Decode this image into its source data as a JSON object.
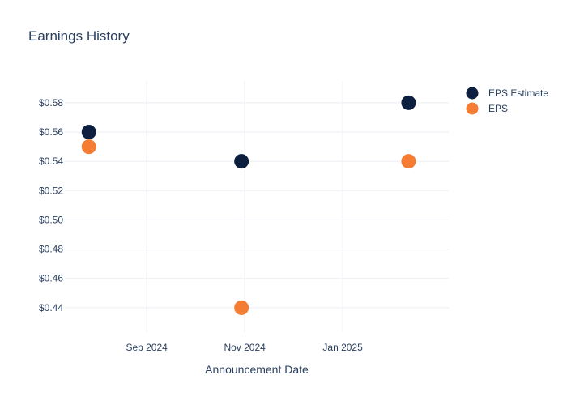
{
  "chart_data": {
    "type": "scatter",
    "title": "Earnings History",
    "xlabel": "Announcement Date",
    "ylabel": "",
    "x_ticks": [
      {
        "date": "2024-09-01",
        "label": "Sep 2024"
      },
      {
        "date": "2024-11-01",
        "label": "Nov 2024"
      },
      {
        "date": "2025-01-01",
        "label": "Jan 2025"
      }
    ],
    "y_ticks": [
      "$0.44",
      "$0.46",
      "$0.48",
      "$0.50",
      "$0.52",
      "$0.54",
      "$0.56",
      "$0.58"
    ],
    "y_tick_values": [
      0.44,
      0.46,
      0.48,
      0.5,
      0.52,
      0.54,
      0.56,
      0.58
    ],
    "xlim": [
      "2024-07-12",
      "2025-03-08"
    ],
    "ylim": [
      0.4233,
      0.5949
    ],
    "grid": true,
    "legend_position": "top-right",
    "series": [
      {
        "name": "EPS Estimate",
        "color": "#0d1f3f",
        "points": [
          {
            "x": "2024-07-27",
            "y": 0.56
          },
          {
            "x": "2024-10-30",
            "y": 0.54
          },
          {
            "x": "2025-02-11",
            "y": 0.58
          }
        ]
      },
      {
        "name": "EPS",
        "color": "#f47c33",
        "points": [
          {
            "x": "2024-07-27",
            "y": 0.55
          },
          {
            "x": "2024-10-30",
            "y": 0.44
          },
          {
            "x": "2025-02-11",
            "y": 0.54
          }
        ]
      }
    ]
  }
}
